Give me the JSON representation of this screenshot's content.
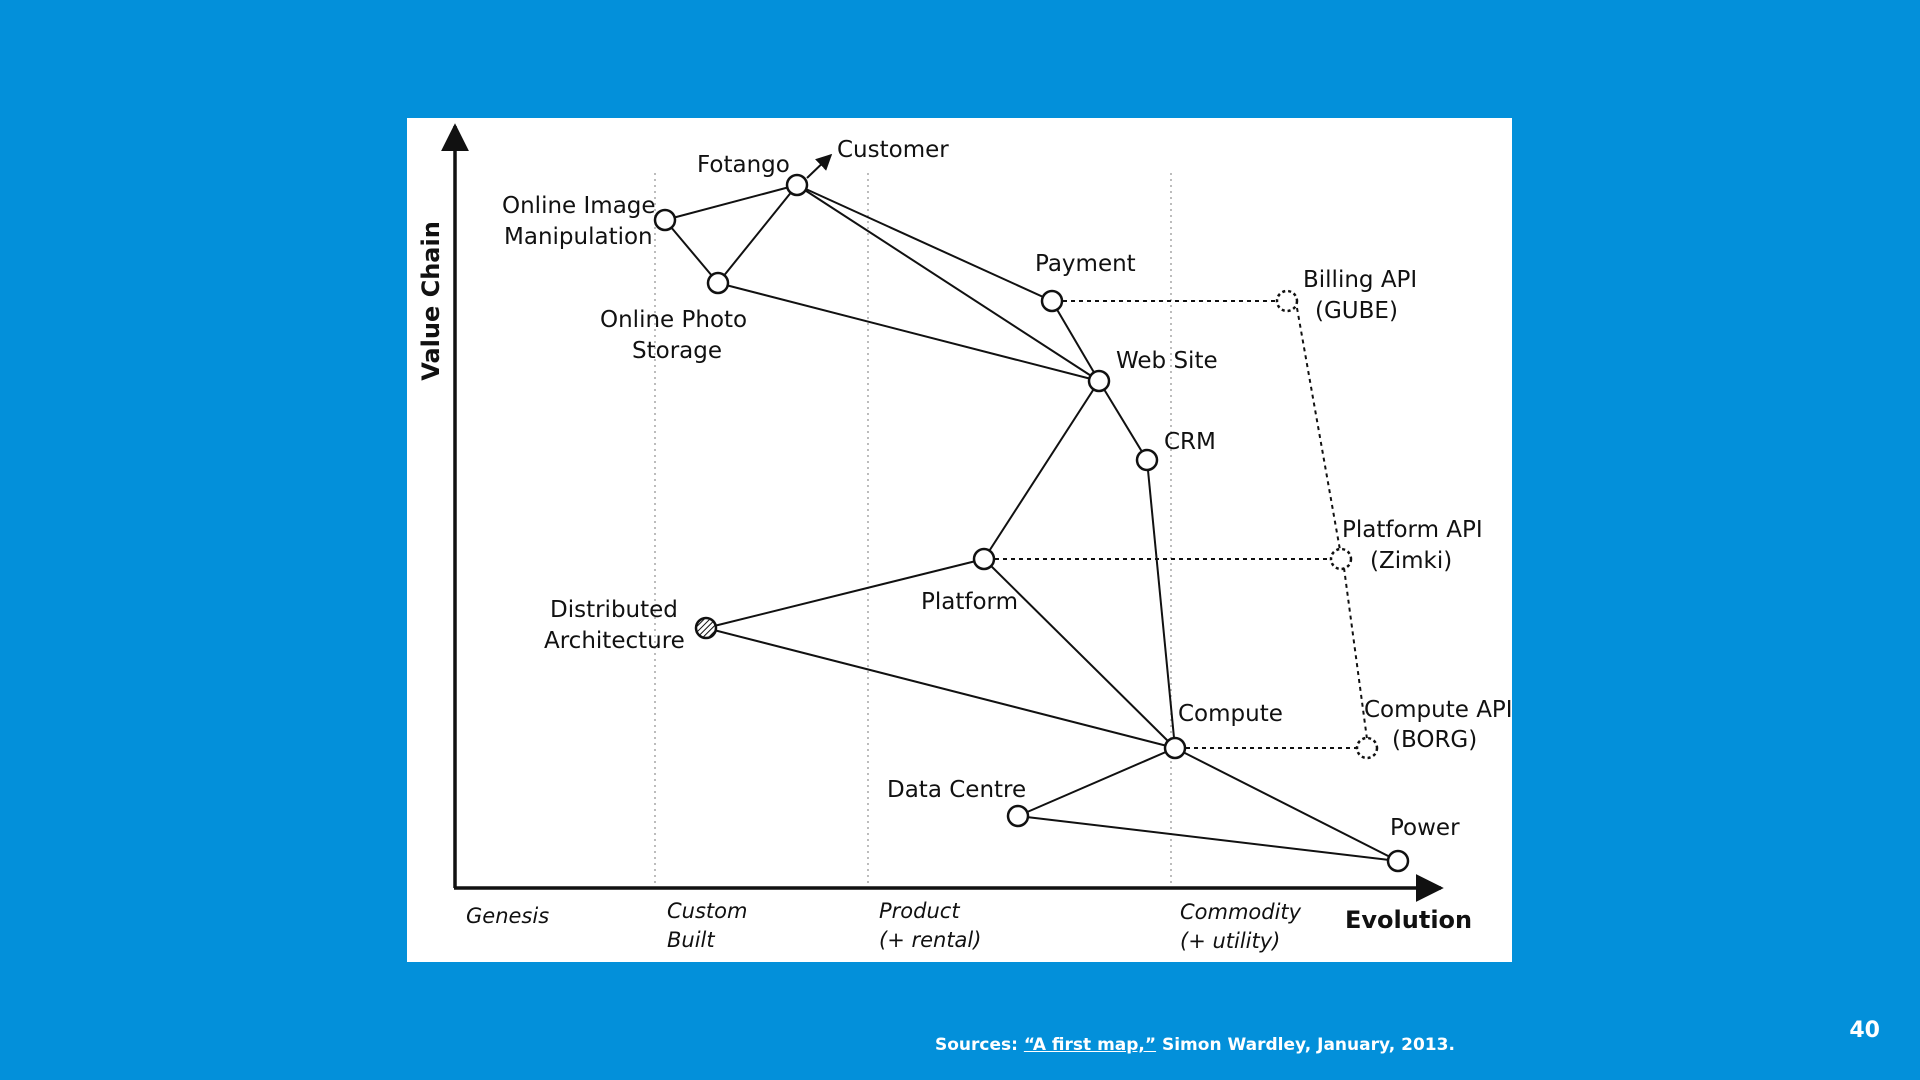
{
  "slide": {
    "page_number": "40",
    "source_prefix": "Sources: ",
    "source_link": "“A first map,”",
    "source_suffix": " Simon Wardley, January, 2013."
  },
  "map": {
    "y_axis_label": "Value Chain",
    "x_axis_label": "Evolution",
    "stages": {
      "genesis": "Genesis",
      "custom_1": "Custom",
      "custom_2": "Built",
      "product_1": "Product",
      "product_2": "(+ rental)",
      "commodity_1": "Commodity",
      "commodity_2": "(+ utility)"
    },
    "labels": {
      "customer": "Customer",
      "fotango": "Fotango",
      "online_image_1": "Online Image",
      "online_image_2": "Manipulation",
      "online_photo_1": "Online Photo",
      "online_photo_2": "Storage",
      "payment": "Payment",
      "billing_api_1": "Billing API",
      "billing_api_2": "(GUBE)",
      "web_site": "Web Site",
      "crm": "CRM",
      "platform_api_1": "Platform API",
      "platform_api_2": "(Zimki)",
      "platform": "Platform",
      "distributed_1": "Distributed",
      "distributed_2": "Architecture",
      "compute": "Compute",
      "compute_api_1": "Compute API",
      "compute_api_2": "(BORG)",
      "data_centre": "Data Centre",
      "power": "Power"
    }
  }
}
